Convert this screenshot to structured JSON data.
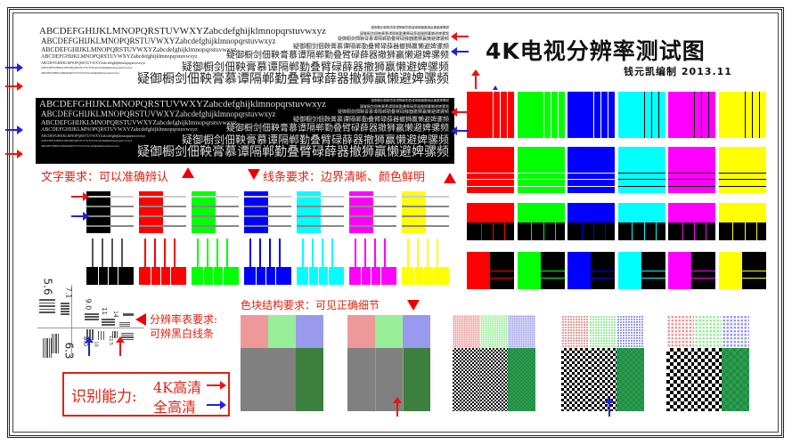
{
  "title": "4K电视分辨率测试图",
  "author_date": "钱元凯编制   2013.11",
  "text_sample_latin": "ABCDEFGHIJKLMNOPQRSTUVWXYZabcdefghijklmnopqrstuvwxyz",
  "text_sample_cjk": "疑御橱剑佃鞅膏慕谭隔郸勤叠臂碌薛器撤狮赢懒避婢骡频",
  "labels": {
    "text_req": "文字要求：可以准确辨认",
    "line_req": "线条要求：边界清晰、颜色鲜明",
    "block_req": "色块结构要求：可见正确细节",
    "res_req_1": "分辨率表要求:",
    "res_req_2": "可辨黑白线条",
    "ability": "识别能力:",
    "uhd": "4K高清",
    "fhd": "全高清"
  },
  "resolution_numbers": [
    "5.6",
    "7.1",
    "6.3",
    "9.0",
    "11",
    "14",
    "8.0",
    "10",
    "12.5"
  ],
  "colors": {
    "accent": "#dd2211",
    "arrow_red": "#ee1111",
    "arrow_blue": "#2222dd",
    "bars": [
      "#000000",
      "#ff0000",
      "#00ff00",
      "#0000ff",
      "#00ffff",
      "#ff00ff",
      "#ffff00"
    ],
    "grid": [
      "#ff0000",
      "#00ff00",
      "#0000ff",
      "#00ffff",
      "#ff00ff",
      "#ffff00"
    ],
    "block_top": [
      "#ee9999",
      "#99ee99",
      "#9999ee"
    ],
    "block_bottom": [
      "#808080",
      "#808080",
      "#3d7f3d"
    ]
  }
}
